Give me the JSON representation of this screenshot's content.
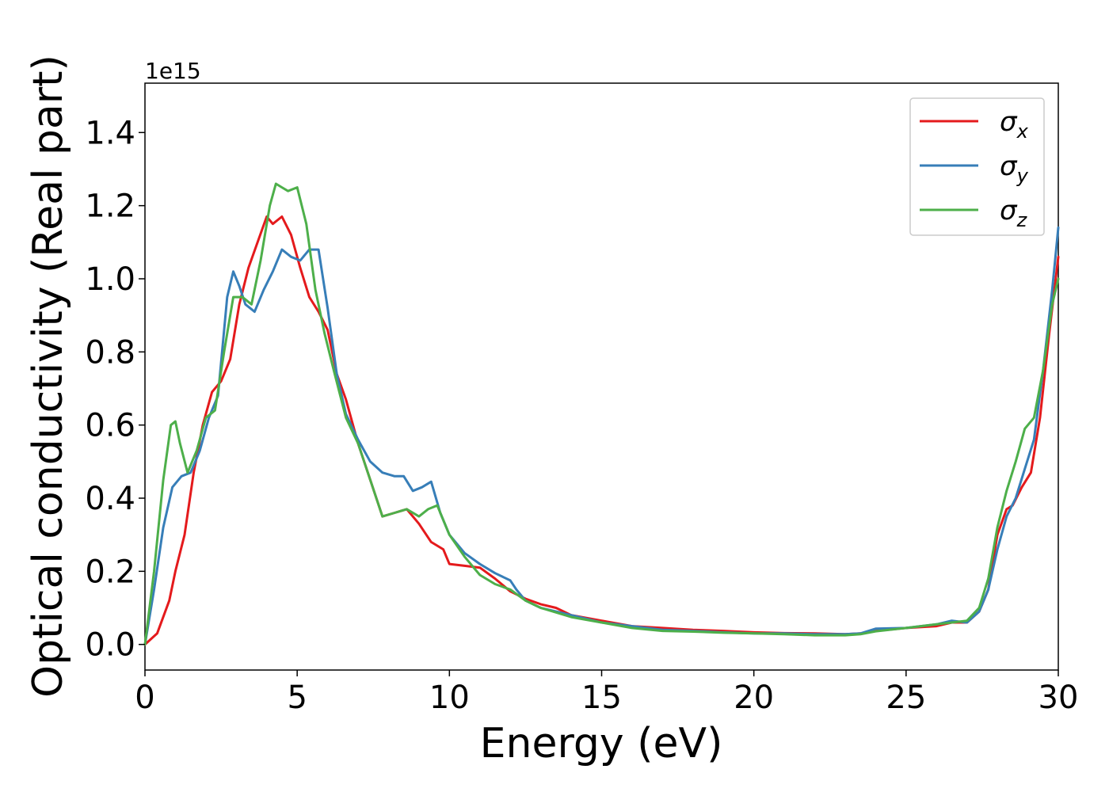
{
  "chart_data": {
    "type": "line",
    "title": "",
    "xlabel": "Energy (eV)",
    "ylabel": "Optical conductivity (Real part)",
    "y_offset_label": "1e15",
    "xlim": [
      0,
      30
    ],
    "ylim": [
      -0.07,
      1.535
    ],
    "xticks": [
      0,
      5,
      10,
      15,
      20,
      25,
      30
    ],
    "yticks": [
      0.0,
      0.2,
      0.4,
      0.6,
      0.8,
      1.0,
      1.2,
      1.4
    ],
    "grid": false,
    "legend_position": "top-right",
    "series": [
      {
        "name": "σx",
        "legend_base": "σ",
        "legend_sub": "x",
        "color": "#e41a1c",
        "x": [
          0,
          0.4,
          0.8,
          1.0,
          1.3,
          1.6,
          1.9,
          2.2,
          2.5,
          2.8,
          3.1,
          3.4,
          3.7,
          4.0,
          4.2,
          4.5,
          4.8,
          5.1,
          5.4,
          5.7,
          6.0,
          6.3,
          6.6,
          7.0,
          7.4,
          7.8,
          8.2,
          8.6,
          9.0,
          9.4,
          9.8,
          10.0,
          10.5,
          11.0,
          11.5,
          12.0,
          12.5,
          13.0,
          13.5,
          14.0,
          15.0,
          16.0,
          17.0,
          18.0,
          19.0,
          20.0,
          21.0,
          22.0,
          23.0,
          23.5,
          24.0,
          25.0,
          26.0,
          26.5,
          27.0,
          27.4,
          27.7,
          28.0,
          28.3,
          28.5,
          28.8,
          29.1,
          29.4,
          29.7,
          30.0
        ],
        "y": [
          0.0,
          0.03,
          0.12,
          0.2,
          0.3,
          0.47,
          0.6,
          0.69,
          0.72,
          0.78,
          0.93,
          1.03,
          1.1,
          1.17,
          1.15,
          1.17,
          1.12,
          1.03,
          0.95,
          0.91,
          0.86,
          0.74,
          0.67,
          0.55,
          0.45,
          0.35,
          0.36,
          0.37,
          0.33,
          0.28,
          0.26,
          0.22,
          0.215,
          0.21,
          0.18,
          0.145,
          0.125,
          0.11,
          0.1,
          0.08,
          0.065,
          0.05,
          0.045,
          0.04,
          0.037,
          0.033,
          0.031,
          0.03,
          0.028,
          0.03,
          0.037,
          0.045,
          0.05,
          0.06,
          0.06,
          0.09,
          0.15,
          0.3,
          0.37,
          0.38,
          0.43,
          0.47,
          0.62,
          0.85,
          1.06
        ]
      },
      {
        "name": "σy",
        "legend_base": "σ",
        "legend_sub": "y",
        "color": "#377eb8",
        "x": [
          0,
          0.3,
          0.6,
          0.9,
          1.2,
          1.5,
          1.8,
          2.1,
          2.4,
          2.7,
          2.9,
          3.1,
          3.3,
          3.6,
          3.9,
          4.2,
          4.5,
          4.8,
          5.1,
          5.4,
          5.7,
          6.0,
          6.3,
          6.6,
          7.0,
          7.4,
          7.8,
          8.2,
          8.5,
          8.8,
          9.1,
          9.4,
          9.7,
          10.0,
          10.5,
          11.0,
          11.5,
          12.0,
          12.2,
          12.5,
          13.0,
          14.0,
          15.0,
          16.0,
          17.0,
          18.0,
          19.0,
          20.0,
          21.0,
          22.0,
          23.0,
          23.5,
          24.0,
          25.0,
          26.0,
          26.5,
          27.0,
          27.4,
          27.7,
          28.0,
          28.3,
          28.6,
          28.9,
          29.2,
          29.5,
          29.8,
          30.0
        ],
        "y": [
          0.0,
          0.15,
          0.32,
          0.43,
          0.46,
          0.47,
          0.53,
          0.62,
          0.68,
          0.95,
          1.02,
          0.98,
          0.93,
          0.91,
          0.97,
          1.02,
          1.08,
          1.06,
          1.05,
          1.08,
          1.08,
          0.92,
          0.74,
          0.63,
          0.56,
          0.5,
          0.47,
          0.46,
          0.46,
          0.42,
          0.43,
          0.445,
          0.36,
          0.3,
          0.25,
          0.22,
          0.195,
          0.175,
          0.15,
          0.12,
          0.1,
          0.08,
          0.06,
          0.05,
          0.04,
          0.037,
          0.033,
          0.03,
          0.03,
          0.028,
          0.028,
          0.03,
          0.043,
          0.045,
          0.055,
          0.065,
          0.06,
          0.09,
          0.15,
          0.26,
          0.35,
          0.4,
          0.48,
          0.56,
          0.75,
          0.97,
          1.14
        ]
      },
      {
        "name": "σz",
        "legend_base": "σ",
        "legend_sub": "z",
        "color": "#4daf4a",
        "x": [
          0,
          0.3,
          0.6,
          0.85,
          1.0,
          1.15,
          1.4,
          1.7,
          2.0,
          2.3,
          2.6,
          2.9,
          3.2,
          3.5,
          3.8,
          4.1,
          4.3,
          4.5,
          4.7,
          5.0,
          5.3,
          5.6,
          5.9,
          6.2,
          6.6,
          7.0,
          7.4,
          7.8,
          8.2,
          8.6,
          9.0,
          9.3,
          9.6,
          10.0,
          10.5,
          11.0,
          11.5,
          12.0,
          12.5,
          13.0,
          14.0,
          15.0,
          16.0,
          17.0,
          18.0,
          19.0,
          20.0,
          21.0,
          22.0,
          23.0,
          23.5,
          24.0,
          25.0,
          26.0,
          26.5,
          27.0,
          27.4,
          27.7,
          28.0,
          28.3,
          28.6,
          28.9,
          29.2,
          29.5,
          29.8,
          30.0
        ],
        "y": [
          0.0,
          0.2,
          0.45,
          0.6,
          0.61,
          0.55,
          0.47,
          0.53,
          0.62,
          0.64,
          0.8,
          0.95,
          0.95,
          0.93,
          1.05,
          1.2,
          1.26,
          1.25,
          1.24,
          1.25,
          1.15,
          0.97,
          0.85,
          0.75,
          0.62,
          0.55,
          0.45,
          0.35,
          0.36,
          0.37,
          0.35,
          0.37,
          0.38,
          0.3,
          0.24,
          0.19,
          0.165,
          0.15,
          0.12,
          0.1,
          0.075,
          0.06,
          0.045,
          0.037,
          0.035,
          0.032,
          0.03,
          0.028,
          0.025,
          0.025,
          0.028,
          0.036,
          0.045,
          0.055,
          0.06,
          0.065,
          0.1,
          0.18,
          0.32,
          0.42,
          0.5,
          0.59,
          0.62,
          0.75,
          0.93,
          1.0
        ]
      }
    ]
  }
}
